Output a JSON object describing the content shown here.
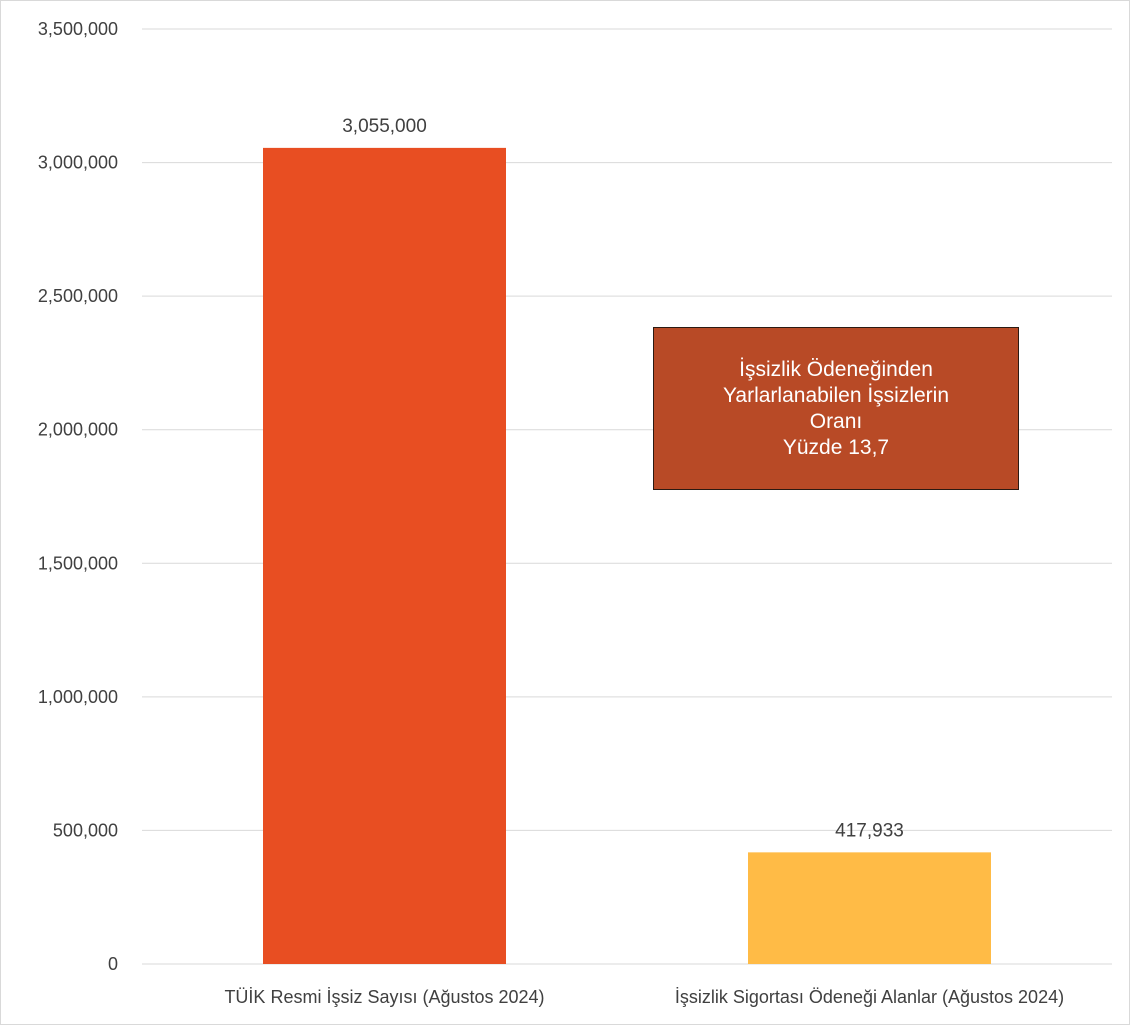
{
  "chart_data": {
    "type": "bar",
    "categories": [
      "TÜİK Resmi İşsiz Sayısı (Ağustos 2024)",
      "İşsizlik Sigortası Ödeneği Alanlar (Ağustos 2024)"
    ],
    "values": [
      3055000,
      417933
    ],
    "value_labels": [
      "3,055,000",
      "417,933"
    ],
    "bar_colors": [
      "#e84e22",
      "#ffbb46"
    ],
    "ylim": [
      0,
      3500000
    ],
    "yticks": [
      0,
      500000,
      1000000,
      1500000,
      2000000,
      2500000,
      3000000,
      3500000
    ],
    "ytick_labels": [
      "0",
      "500,000",
      "1,000,000",
      "1,500,000",
      "2,000,000",
      "2,500,000",
      "3,000,000",
      "3,500,000"
    ],
    "title": "",
    "xlabel": "",
    "ylabel": "",
    "grid": true,
    "gridline_color": "#d9d9d9",
    "annotation": {
      "lines": [
        "İşsizlik Ödeneğinden",
        "Yarlarlanabilen İşsizlerin",
        "Oranı",
        "Yüzde 13,7"
      ],
      "background": "#b84a26",
      "text_color": "#ffffff"
    }
  }
}
